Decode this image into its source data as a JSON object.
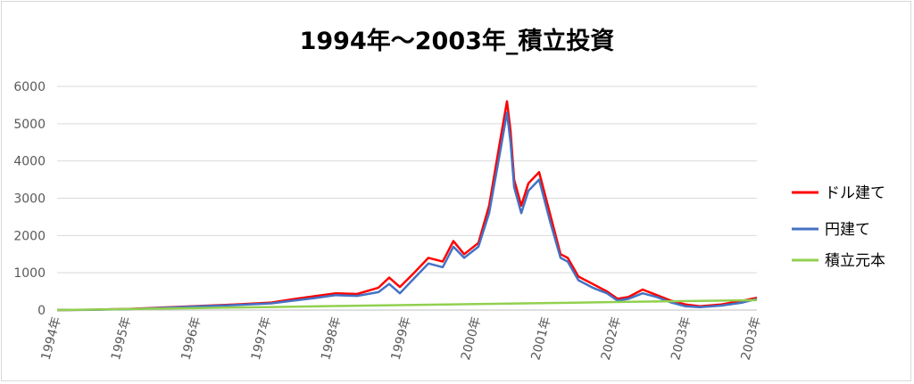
{
  "chart_data": {
    "type": "line",
    "title": "1994年～2003年_積立投資",
    "xlabel": "",
    "ylabel": "",
    "ylim": [
      0,
      6000
    ],
    "yticks": [
      0,
      1000,
      2000,
      3000,
      4000,
      5000,
      6000
    ],
    "xlim": [
      1994.0,
      2003.8
    ],
    "xtick_labels": [
      "1994年",
      "1995年",
      "1996年",
      "1997年",
      "1998年",
      "1999年",
      "2000年",
      "2001年",
      "2002年",
      "2003年",
      "2003年"
    ],
    "grid": true,
    "legend_position": "right",
    "series": [
      {
        "name": "ドル建て",
        "color": "#ff0000",
        "x": [
          1994.0,
          1994.5,
          1995.0,
          1995.5,
          1996.0,
          1996.5,
          1997.0,
          1997.3,
          1997.6,
          1997.9,
          1998.2,
          1998.5,
          1998.65,
          1998.8,
          1999.0,
          1999.2,
          1999.4,
          1999.55,
          1999.7,
          1999.9,
          2000.05,
          2000.2,
          2000.3,
          2000.35,
          2000.4,
          2000.5,
          2000.6,
          2000.75,
          2000.9,
          2001.05,
          2001.15,
          2001.3,
          2001.5,
          2001.7,
          2001.85,
          2002.0,
          2002.2,
          2002.4,
          2002.6,
          2002.8,
          2003.0,
          2003.3,
          2003.6,
          2003.8
        ],
        "values": [
          0,
          10,
          30,
          70,
          110,
          150,
          200,
          290,
          370,
          450,
          430,
          600,
          870,
          620,
          1000,
          1400,
          1300,
          1850,
          1500,
          1800,
          2800,
          4500,
          5600,
          4800,
          3500,
          2800,
          3400,
          3700,
          2600,
          1500,
          1400,
          900,
          700,
          500,
          300,
          350,
          550,
          400,
          250,
          150,
          100,
          150,
          250,
          330
        ]
      },
      {
        "name": "円建て",
        "color": "#4472c4",
        "x": [
          1994.0,
          1994.5,
          1995.0,
          1995.5,
          1996.0,
          1996.5,
          1997.0,
          1997.3,
          1997.6,
          1997.9,
          1998.2,
          1998.5,
          1998.65,
          1998.8,
          1999.0,
          1999.2,
          1999.4,
          1999.55,
          1999.7,
          1999.9,
          2000.05,
          2000.2,
          2000.3,
          2000.35,
          2000.4,
          2000.5,
          2000.6,
          2000.75,
          2000.9,
          2001.05,
          2001.15,
          2001.3,
          2001.5,
          2001.7,
          2001.85,
          2002.0,
          2002.2,
          2002.4,
          2002.6,
          2002.8,
          2003.0,
          2003.3,
          2003.6,
          2003.8
        ],
        "values": [
          0,
          8,
          25,
          60,
          100,
          135,
          180,
          250,
          320,
          400,
          380,
          480,
          700,
          450,
          850,
          1250,
          1150,
          1700,
          1400,
          1700,
          2600,
          4200,
          5300,
          4500,
          3300,
          2600,
          3200,
          3500,
          2400,
          1400,
          1300,
          800,
          600,
          450,
          250,
          300,
          450,
          350,
          200,
          100,
          80,
          120,
          200,
          300
        ]
      },
      {
        "name": "積立元本",
        "color": "#92d050",
        "x": [
          1994.0,
          1995.0,
          1996.0,
          1997.0,
          1998.0,
          1999.0,
          2000.0,
          2001.0,
          2002.0,
          2003.0,
          2003.8
        ],
        "values": [
          0,
          27,
          55,
          82,
          110,
          137,
          165,
          192,
          220,
          247,
          265
        ]
      }
    ]
  }
}
